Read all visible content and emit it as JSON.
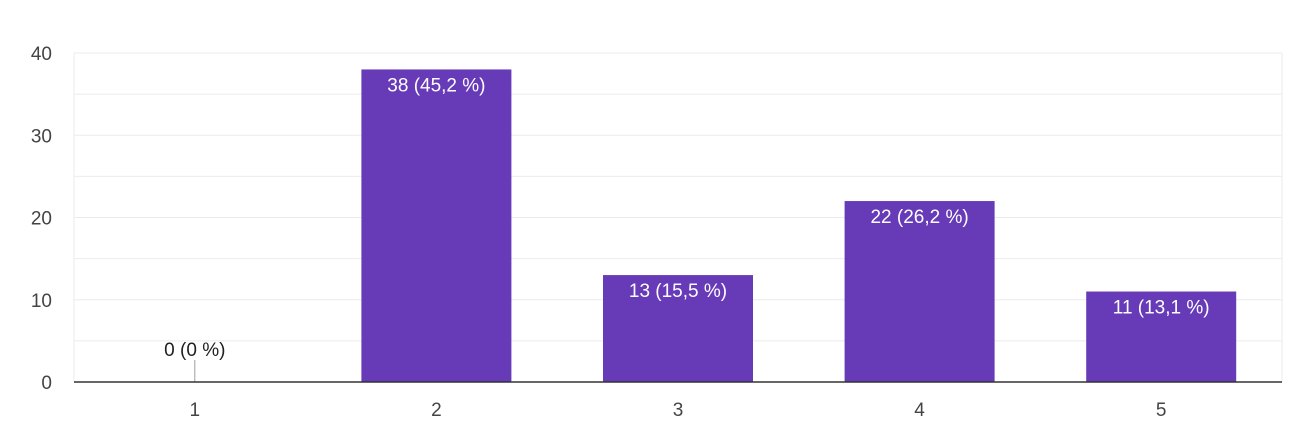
{
  "chart_data": {
    "type": "bar",
    "categories": [
      "1",
      "2",
      "3",
      "4",
      "5"
    ],
    "values": [
      0,
      38,
      13,
      22,
      11
    ],
    "data_labels": [
      "0 (0 %)",
      "38 (45,2 %)",
      "13 (15,5 %)",
      "22 (26,2 %)",
      "11 (13,1 %)"
    ],
    "title": "",
    "xlabel": "",
    "ylabel": "",
    "ylim": [
      0,
      40
    ],
    "yticks": [
      0,
      10,
      20,
      30,
      40
    ],
    "grid": true,
    "legend": "none",
    "colors": {
      "bar": "#673ab7",
      "label_inside": "#ffffff",
      "label_outside": "#212121",
      "grid": "#ebebeb",
      "baseline": "#333333",
      "tick": "#444444"
    }
  }
}
